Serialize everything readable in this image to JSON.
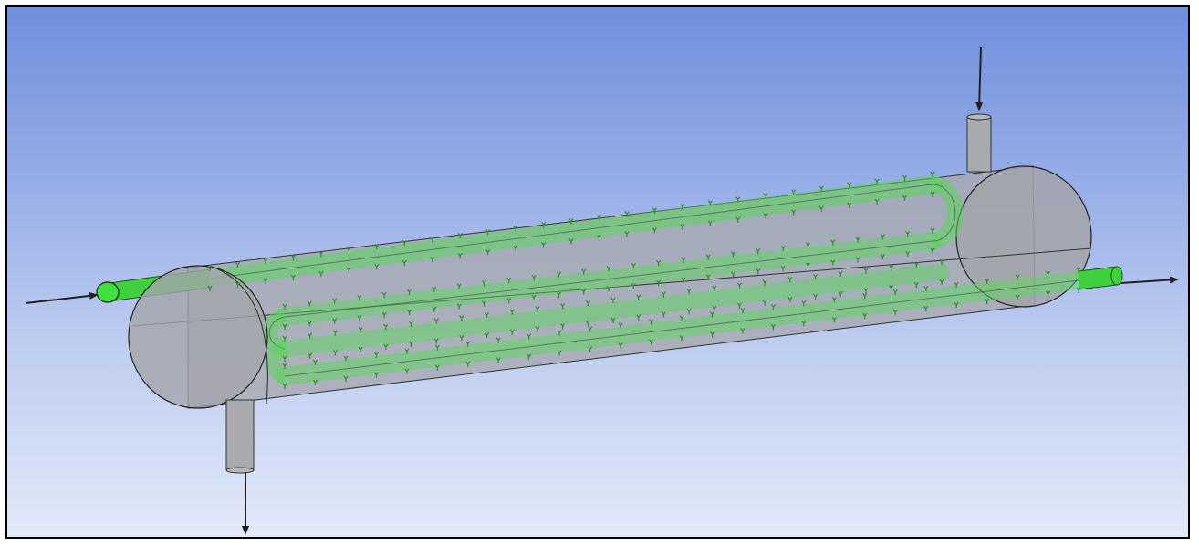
{
  "viewport": {
    "background_top": "#6f8fdc",
    "background_bottom": "#e2e9f8"
  },
  "model": {
    "shell_color": "#a9aab0",
    "shell_opacity": 0.78,
    "tube_color": "#4fd64f",
    "edge_color": "#2b2b2b",
    "load_marker_color": "#2e8f2e",
    "arrow_color": "#222222",
    "tube_passes": 4,
    "icons": [
      "shell-body",
      "tube-bundle",
      "inlet-arrow",
      "outlet-arrow"
    ]
  }
}
